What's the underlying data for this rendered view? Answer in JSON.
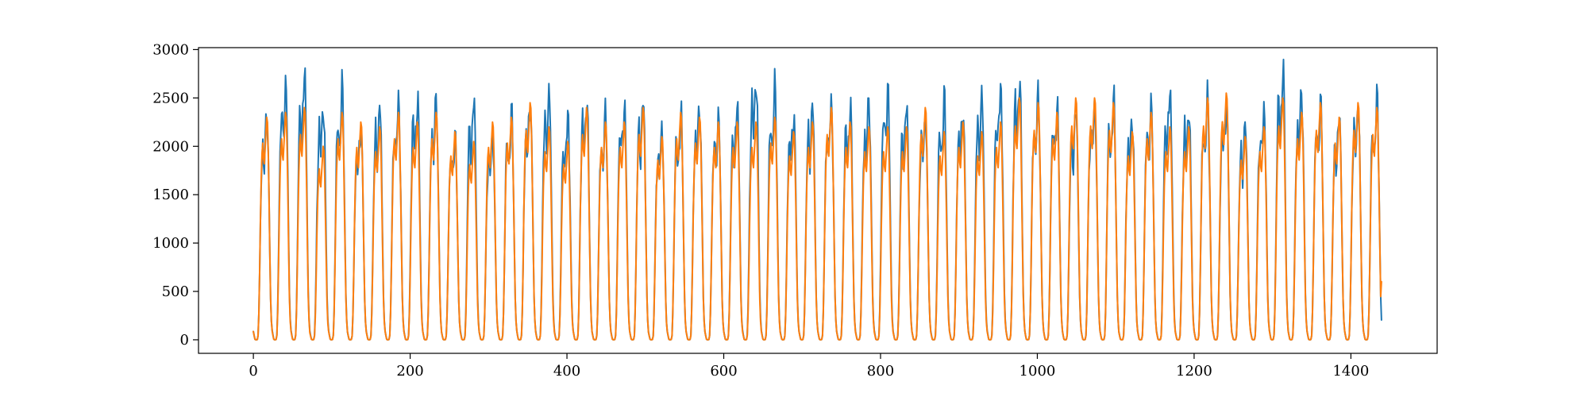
{
  "chart_data": {
    "type": "line",
    "title": "",
    "xlabel": "",
    "ylabel": "",
    "xlim": [
      -70,
      1510
    ],
    "ylim": [
      -140,
      3020
    ],
    "xticks": [
      0,
      200,
      400,
      600,
      800,
      1000,
      1200,
      1400
    ],
    "yticks": [
      0,
      500,
      1000,
      1500,
      2000,
      2500,
      3000
    ],
    "grid": false,
    "legend": "none",
    "x_range": [
      0,
      1439
    ],
    "period": 24,
    "day_shape": [
      80,
      40,
      5,
      0,
      0,
      3,
      40,
      250,
      650,
      1150,
      1550,
      1800,
      1900,
      1750,
      1700,
      1850,
      2000,
      2150,
      2100,
      1800,
      1350,
      850,
      400,
      180
    ],
    "series": [
      {
        "color": "#1f77b4",
        "day_peaks": [
          2300,
          2650,
          2700,
          2450,
          2550,
          2200,
          2400,
          2450,
          2500,
          2450,
          2150,
          2450,
          2150,
          2300,
          2450,
          2550,
          2300,
          2500,
          2300,
          2450,
          2450,
          2200,
          2300,
          2400,
          2300,
          2400,
          2720,
          2550,
          2350,
          2400,
          2450,
          2400,
          2450,
          2600,
          2400,
          2350,
          2450,
          2400,
          2500,
          2600,
          2700,
          2500,
          2450,
          2350,
          2450,
          2450,
          2300,
          2400,
          2550,
          2400,
          2450,
          2450,
          2200,
          2400,
          2750,
          2550,
          2450,
          2300,
          2450,
          2450,
          2850
        ]
      },
      {
        "color": "#ff7f0e",
        "day_peaks": [
          2300,
          2350,
          2400,
          2000,
          2350,
          2250,
          2200,
          2350,
          2250,
          2350,
          2150,
          2050,
          2250,
          2300,
          2450,
          2200,
          2050,
          2400,
          2250,
          2250,
          2400,
          2100,
          2350,
          2300,
          2250,
          2250,
          2250,
          2300,
          2150,
          2250,
          2400,
          2250,
          2200,
          2200,
          2200,
          2400,
          2150,
          2250,
          2150,
          2250,
          2500,
          2450,
          2350,
          2500,
          2500,
          2450,
          2150,
          2350,
          2200,
          2200,
          2500,
          2550,
          2100,
          2200,
          2500,
          2350,
          2450,
          2300,
          2450,
          2400,
          2500
        ]
      }
    ]
  }
}
